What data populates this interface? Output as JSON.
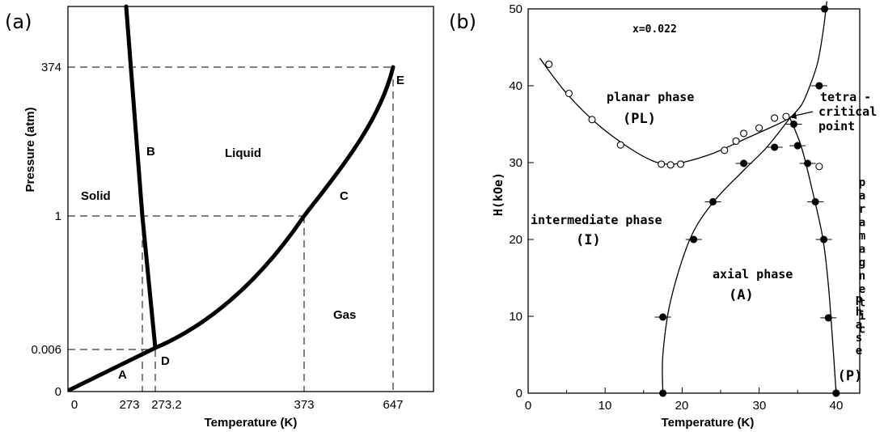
{
  "panel_a": {
    "tag": "(a)",
    "chart_data": {
      "type": "line",
      "xlabel": "Temperature (K)",
      "ylabel": "Pressure (atm)",
      "x_ticks": [
        "0",
        "273",
        "273.2",
        "373",
        "647"
      ],
      "y_ticks": [
        "0",
        "0.006",
        "1",
        "374"
      ],
      "series": [
        {
          "x": [
            0,
            273.2
          ],
          "y": [
            0,
            0.006
          ]
        },
        {
          "x": [
            273.2,
            273,
            265
          ],
          "y": [
            0.006,
            1,
            700
          ]
        },
        {
          "x": [
            273.2,
            373,
            647
          ],
          "y": [
            0.006,
            1,
            374
          ]
        }
      ],
      "dashed_refs": [
        {
          "x": [
            0,
            373
          ],
          "y": [
            1,
            1
          ]
        },
        {
          "x": [
            0,
            647
          ],
          "y": [
            374,
            374
          ]
        },
        {
          "x": [
            0,
            273.2
          ],
          "y": [
            0.006,
            0.006
          ]
        },
        {
          "x": [
            273,
            273
          ],
          "y": [
            0,
            1
          ]
        },
        {
          "x": [
            273.2,
            273.2
          ],
          "y": [
            0,
            0.006
          ]
        },
        {
          "x": [
            373,
            373
          ],
          "y": [
            0,
            1
          ]
        },
        {
          "x": [
            647,
            647
          ],
          "y": [
            0,
            374
          ]
        }
      ],
      "annotations": [
        "Solid",
        "Liquid",
        "Gas",
        "A",
        "B",
        "C",
        "D",
        "E"
      ]
    }
  },
  "panel_b": {
    "tag": "(b)",
    "chart_data": {
      "type": "scatter",
      "xlabel": "Temperature (K)",
      "ylabel": "H(kOe)",
      "xlim": [
        0,
        44
      ],
      "ylim": [
        0,
        50
      ],
      "x_ticks": [
        "0",
        "10",
        "20",
        "30",
        "40"
      ],
      "y_ticks": [
        "0",
        "10",
        "20",
        "30",
        "40",
        "50"
      ],
      "series": [
        {
          "marker": "open circle",
          "x": [
            2.7,
            5.3,
            8.3,
            12,
            17.3,
            18.5,
            19.8,
            25.5,
            27,
            28,
            30,
            32,
            33.5,
            37.8
          ],
          "y": [
            42.8,
            39,
            35.6,
            32.3,
            29.8,
            29.7,
            29.8,
            31.6,
            32.8,
            33.8,
            34.5,
            35.8,
            36,
            29.5
          ]
        },
        {
          "marker": "filled circle",
          "x": [
            17.5,
            17.5,
            21.5,
            24,
            28,
            32,
            34.5,
            35,
            36.3,
            37.3,
            38.4,
            39,
            40,
            40,
            37.8,
            38.5
          ],
          "y": [
            0,
            9.9,
            20,
            24.9,
            29.9,
            32,
            35,
            32.2,
            29.9,
            24.9,
            20,
            9.8,
            0,
            0,
            40,
            50
          ]
        }
      ],
      "boundary_points": [
        {
          "x": [
            1.5,
            5,
            9,
            13,
            16,
            18,
            20,
            24,
            28,
            32,
            34
          ],
          "y": [
            43.6,
            39,
            35,
            32,
            30.3,
            29.8,
            30,
            31.2,
            33,
            34.8,
            35.8
          ]
        },
        {
          "x": [
            17.5,
            17.5,
            18.5,
            21,
            24,
            28,
            31,
            34
          ],
          "y": [
            0,
            5,
            12,
            20,
            24.8,
            29,
            32,
            35.8
          ]
        },
        {
          "x": [
            34,
            35.5,
            37,
            38.3,
            39,
            39.6,
            40
          ],
          "y": [
            35.8,
            32,
            26,
            20,
            14,
            6,
            0
          ]
        },
        {
          "x": [
            34,
            35.5,
            36.6,
            37.6,
            38.3,
            38.8
          ],
          "y": [
            35.8,
            37.5,
            40,
            43,
            47,
            51
          ]
        }
      ],
      "annotations": [
        "x=0.022",
        "planar phase",
        "(PL)",
        "tetra-",
        "critical",
        "point",
        "intermediate phase",
        "(I)",
        "axial phase",
        "(A)",
        "paramagnetic phase",
        "(P)"
      ]
    }
  },
  "labels": {
    "tag_a": "(a)",
    "tag_b": "(b)",
    "a_xlabel": "Temperature (K)",
    "a_ylabel": "Pressure (atm)",
    "a_x0": "0",
    "a_x1": "273",
    "a_x2": "273.2",
    "a_x3": "373",
    "a_x4": "647",
    "a_y0": "0",
    "a_y1": "0.006",
    "a_y2": "1",
    "a_y3": "374",
    "solid": "Solid",
    "liquid": "Liquid",
    "gas": "Gas",
    "A": "A",
    "B": "B",
    "C": "C",
    "D": "D",
    "E": "E",
    "b_xlabel": "Temperature (K)",
    "b_ylabel": "H(kOe)",
    "b_x0": "0",
    "b_x1": "10",
    "b_x2": "20",
    "b_x3": "30",
    "b_x4": "40",
    "b_y0": "0",
    "b_y1": "10",
    "b_y2": "20",
    "b_y3": "30",
    "b_y4": "40",
    "b_y5": "50",
    "xconc": "x=0.022",
    "planar": "planar phase",
    "pl": "(PL)",
    "tetra": "tetra -",
    "critical": "critical",
    "point": "point",
    "intermediate": "intermediate phase",
    "i": "(I)",
    "axial": "axial phase",
    "a_phase": "(A)",
    "para_letters": [
      "p",
      "a",
      "r",
      "a",
      "m",
      "a",
      "g",
      "n",
      "e",
      "t",
      "i",
      "c"
    ],
    "phase_letters": [
      "p",
      "h",
      "a",
      "s",
      "e"
    ],
    "p": "(P)"
  }
}
